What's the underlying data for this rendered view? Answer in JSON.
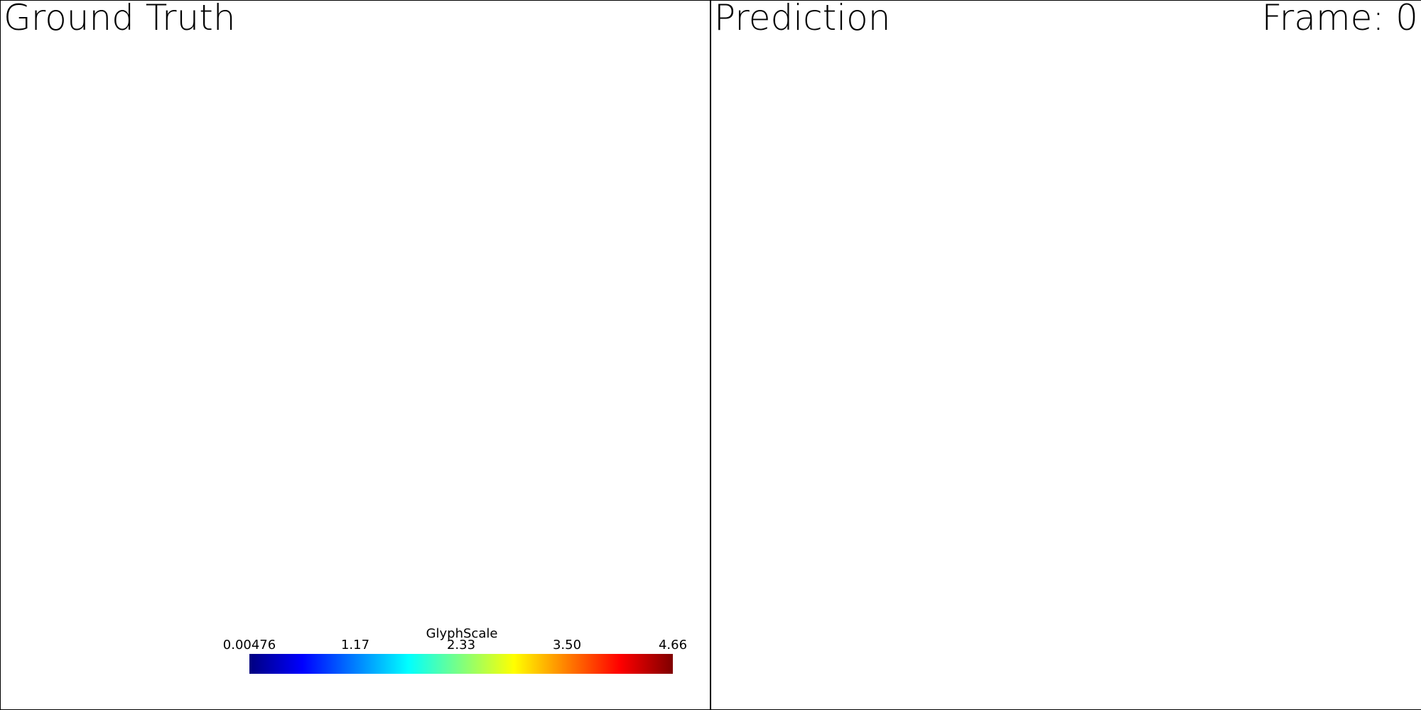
{
  "left_view": {
    "title": "Ground Truth"
  },
  "right_view": {
    "title": "Prediction",
    "frame_label": "Frame: 0"
  },
  "colorbar": {
    "title": "GlyphScale",
    "min": 0.00476,
    "max": 4.66,
    "tick_labels": [
      "0.00476",
      "1.17",
      "2.33",
      "3.50",
      "4.66"
    ],
    "colormap": "jet",
    "colors": [
      "#00007f",
      "#0000ff",
      "#007fff",
      "#00ffff",
      "#7fff7f",
      "#ffff00",
      "#ff7f00",
      "#ff0000",
      "#7f0000"
    ]
  }
}
